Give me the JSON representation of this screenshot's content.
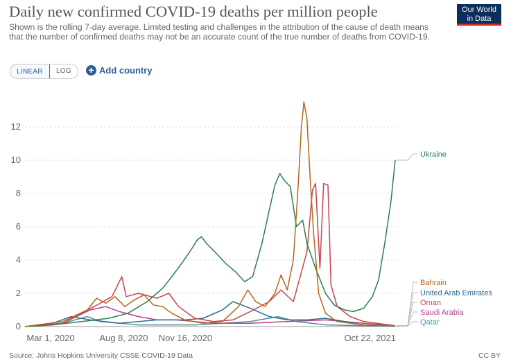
{
  "header": {
    "title": "Daily new confirmed COVID-19 deaths per million people",
    "subtitle": "Shown is the rolling 7-day average. Limited testing and challenges in the attribution of the cause of death means that the number of confirmed deaths may not be an accurate count of the true number of deaths from COVID-19.",
    "logo_line1": "Our World",
    "logo_line2": "in Data"
  },
  "controls": {
    "linear_label": "LINEAR",
    "log_label": "LOG",
    "add_country_label": "Add country"
  },
  "footer": {
    "source": "Source: Johns Hopkins University CSSE COVID-19 Data",
    "license": "CC BY"
  },
  "colors": {
    "Ukraine": "#2a7e4f",
    "Bahrain": "#b5651d",
    "United Arab Emirates": "#2f6c8f",
    "Oman": "#c7434d",
    "Saudi Arabia": "#b7408a",
    "Qatar": "#4a8ea0"
  },
  "chart_data": {
    "type": "line",
    "title": "Daily new confirmed COVID-19 deaths per million people",
    "x_tick_labels": [
      "Mar 1, 2020",
      "Aug 8, 2020",
      "Nov 16, 2020",
      "Oct 22, 2021"
    ],
    "x_range": [
      "2020-03-01",
      "2021-10-22"
    ],
    "ylim": [
      0,
      14
    ],
    "y_ticks": [
      0,
      2,
      4,
      6,
      8,
      10,
      12
    ],
    "grid": "horizontal dashed",
    "legend": "right, labels at line ends",
    "series": [
      {
        "name": "Ukraine",
        "points": [
          [
            "2020-03-01",
            0
          ],
          [
            "2020-04-15",
            0.1
          ],
          [
            "2020-06-01",
            0.3
          ],
          [
            "2020-07-15",
            0.5
          ],
          [
            "2020-08-15",
            0.8
          ],
          [
            "2020-09-15",
            1.5
          ],
          [
            "2020-10-10",
            2.3
          ],
          [
            "2020-10-25",
            3.0
          ],
          [
            "2020-11-10",
            3.8
          ],
          [
            "2020-11-25",
            4.6
          ],
          [
            "2020-12-05",
            5.2
          ],
          [
            "2020-12-12",
            5.4
          ],
          [
            "2020-12-20",
            5.0
          ],
          [
            "2021-01-05",
            4.4
          ],
          [
            "2021-01-20",
            3.8
          ],
          [
            "2021-02-05",
            3.3
          ],
          [
            "2021-02-20",
            2.7
          ],
          [
            "2021-03-05",
            3.0
          ],
          [
            "2021-03-20",
            5.0
          ],
          [
            "2021-04-01",
            7.0
          ],
          [
            "2021-04-10",
            8.5
          ],
          [
            "2021-04-18",
            9.2
          ],
          [
            "2021-04-25",
            8.8
          ],
          [
            "2021-05-05",
            8.4
          ],
          [
            "2021-05-15",
            6.0
          ],
          [
            "2021-05-25",
            6.4
          ],
          [
            "2021-06-01",
            5.0
          ],
          [
            "2021-06-15",
            3.5
          ],
          [
            "2021-07-01",
            2.0
          ],
          [
            "2021-07-15",
            1.3
          ],
          [
            "2021-08-01",
            1.0
          ],
          [
            "2021-08-15",
            0.9
          ],
          [
            "2021-09-01",
            1.1
          ],
          [
            "2021-09-15",
            1.8
          ],
          [
            "2021-09-25",
            2.8
          ],
          [
            "2021-10-05",
            5.0
          ],
          [
            "2021-10-15",
            7.5
          ],
          [
            "2021-10-22",
            10.0
          ]
        ]
      },
      {
        "name": "Bahrain",
        "points": [
          [
            "2020-03-01",
            0
          ],
          [
            "2020-05-01",
            0.3
          ],
          [
            "2020-06-10",
            1.0
          ],
          [
            "2020-06-25",
            1.7
          ],
          [
            "2020-07-10",
            1.4
          ],
          [
            "2020-07-25",
            1.8
          ],
          [
            "2020-08-10",
            1.2
          ],
          [
            "2020-08-25",
            1.6
          ],
          [
            "2020-09-10",
            1.9
          ],
          [
            "2020-09-25",
            1.3
          ],
          [
            "2020-10-10",
            1.2
          ],
          [
            "2020-10-25",
            0.8
          ],
          [
            "2020-11-15",
            0.4
          ],
          [
            "2020-12-15",
            0.2
          ],
          [
            "2021-01-15",
            0.3
          ],
          [
            "2021-02-10",
            1.2
          ],
          [
            "2021-02-25",
            2.2
          ],
          [
            "2021-03-10",
            1.5
          ],
          [
            "2021-03-25",
            1.2
          ],
          [
            "2021-04-10",
            2.0
          ],
          [
            "2021-04-20",
            3.1
          ],
          [
            "2021-04-30",
            2.2
          ],
          [
            "2021-05-10",
            4.0
          ],
          [
            "2021-05-17",
            8.0
          ],
          [
            "2021-05-23",
            12.0
          ],
          [
            "2021-05-27",
            13.5
          ],
          [
            "2021-06-01",
            12.5
          ],
          [
            "2021-06-06",
            9.0
          ],
          [
            "2021-06-12",
            5.5
          ],
          [
            "2021-06-20",
            2.0
          ],
          [
            "2021-07-01",
            0.8
          ],
          [
            "2021-07-20",
            0.3
          ],
          [
            "2021-09-01",
            0.1
          ],
          [
            "2021-10-22",
            0.05
          ]
        ]
      },
      {
        "name": "United Arab Emirates",
        "points": [
          [
            "2020-03-01",
            0
          ],
          [
            "2020-04-15",
            0.2
          ],
          [
            "2020-05-15",
            0.6
          ],
          [
            "2020-06-15",
            0.4
          ],
          [
            "2020-08-01",
            0.2
          ],
          [
            "2020-10-01",
            0.4
          ],
          [
            "2020-11-15",
            0.4
          ],
          [
            "2020-12-15",
            0.5
          ],
          [
            "2021-01-15",
            1.0
          ],
          [
            "2021-02-01",
            1.5
          ],
          [
            "2021-02-15",
            1.3
          ],
          [
            "2021-03-01",
            1.1
          ],
          [
            "2021-04-01",
            0.6
          ],
          [
            "2021-05-01",
            0.4
          ],
          [
            "2021-06-01",
            0.4
          ],
          [
            "2021-07-01",
            0.5
          ],
          [
            "2021-08-01",
            0.3
          ],
          [
            "2021-09-01",
            0.1
          ],
          [
            "2021-10-22",
            0.05
          ]
        ]
      },
      {
        "name": "Oman",
        "points": [
          [
            "2020-03-01",
            0
          ],
          [
            "2020-05-01",
            0.2
          ],
          [
            "2020-06-01",
            0.8
          ],
          [
            "2020-07-01",
            1.4
          ],
          [
            "2020-07-20",
            1.8
          ],
          [
            "2020-08-05",
            3.0
          ],
          [
            "2020-08-12",
            1.8
          ],
          [
            "2020-09-01",
            2.0
          ],
          [
            "2020-10-01",
            1.7
          ],
          [
            "2020-10-20",
            2.0
          ],
          [
            "2020-11-05",
            1.2
          ],
          [
            "2020-12-01",
            0.5
          ],
          [
            "2021-01-01",
            0.3
          ],
          [
            "2021-02-01",
            0.4
          ],
          [
            "2021-03-01",
            0.9
          ],
          [
            "2021-04-01",
            1.5
          ],
          [
            "2021-04-20",
            2.2
          ],
          [
            "2021-05-10",
            1.5
          ],
          [
            "2021-06-01",
            4.5
          ],
          [
            "2021-06-10",
            8.2
          ],
          [
            "2021-06-15",
            8.6
          ],
          [
            "2021-06-22",
            3.5
          ],
          [
            "2021-06-28",
            8.6
          ],
          [
            "2021-07-05",
            8.5
          ],
          [
            "2021-07-10",
            2.5
          ],
          [
            "2021-07-20",
            1.2
          ],
          [
            "2021-08-10",
            0.6
          ],
          [
            "2021-09-01",
            0.3
          ],
          [
            "2021-10-22",
            0.05
          ]
        ]
      },
      {
        "name": "Saudi Arabia",
        "points": [
          [
            "2020-03-01",
            0
          ],
          [
            "2020-05-01",
            0.2
          ],
          [
            "2020-06-15",
            1.0
          ],
          [
            "2020-07-10",
            1.2
          ],
          [
            "2020-08-01",
            0.9
          ],
          [
            "2020-09-01",
            0.6
          ],
          [
            "2020-10-01",
            0.4
          ],
          [
            "2020-11-01",
            0.4
          ],
          [
            "2020-12-01",
            0.3
          ],
          [
            "2021-01-01",
            0.2
          ],
          [
            "2021-03-01",
            0.2
          ],
          [
            "2021-05-01",
            0.3
          ],
          [
            "2021-07-01",
            0.4
          ],
          [
            "2021-09-01",
            0.2
          ],
          [
            "2021-10-22",
            0.05
          ]
        ]
      },
      {
        "name": "Qatar",
        "points": [
          [
            "2020-03-01",
            0
          ],
          [
            "2020-05-01",
            0.2
          ],
          [
            "2020-06-10",
            0.6
          ],
          [
            "2020-07-01",
            0.3
          ],
          [
            "2020-09-01",
            0.1
          ],
          [
            "2020-12-01",
            0.1
          ],
          [
            "2021-03-01",
            0.3
          ],
          [
            "2021-04-15",
            0.6
          ],
          [
            "2021-05-15",
            0.3
          ],
          [
            "2021-07-01",
            0.1
          ],
          [
            "2021-10-22",
            0.02
          ]
        ]
      }
    ],
    "end_labels": [
      {
        "name": "Ukraine"
      },
      {
        "name": "Bahrain"
      },
      {
        "name": "United Arab Emirates"
      },
      {
        "name": "Oman"
      },
      {
        "name": "Saudi Arabia"
      },
      {
        "name": "Qatar"
      }
    ]
  }
}
